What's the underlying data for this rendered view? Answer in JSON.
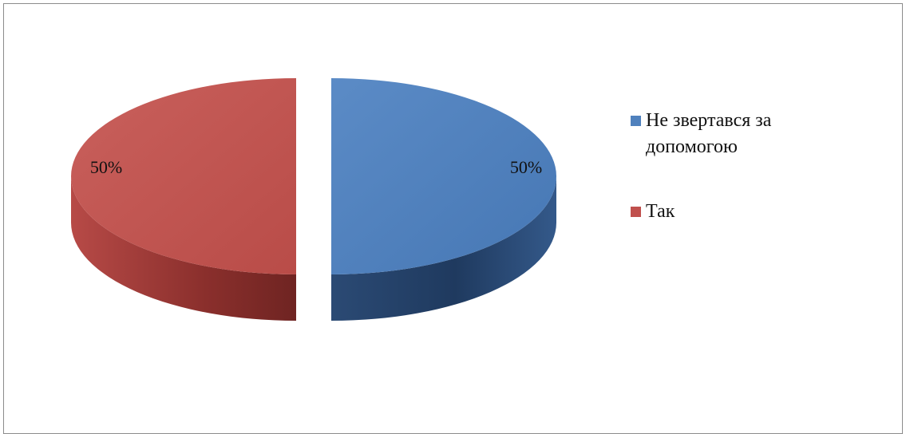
{
  "chart_data": {
    "type": "pie",
    "title": "",
    "categories": [
      "Не звертався за допомогою",
      "Так"
    ],
    "values": [
      50,
      50
    ],
    "unit": "%",
    "data_labels": [
      "50%",
      "50%"
    ],
    "colors": [
      "#4f81bd",
      "#c0504d"
    ],
    "legend_position": "right",
    "exploded": true,
    "three_d": true
  }
}
